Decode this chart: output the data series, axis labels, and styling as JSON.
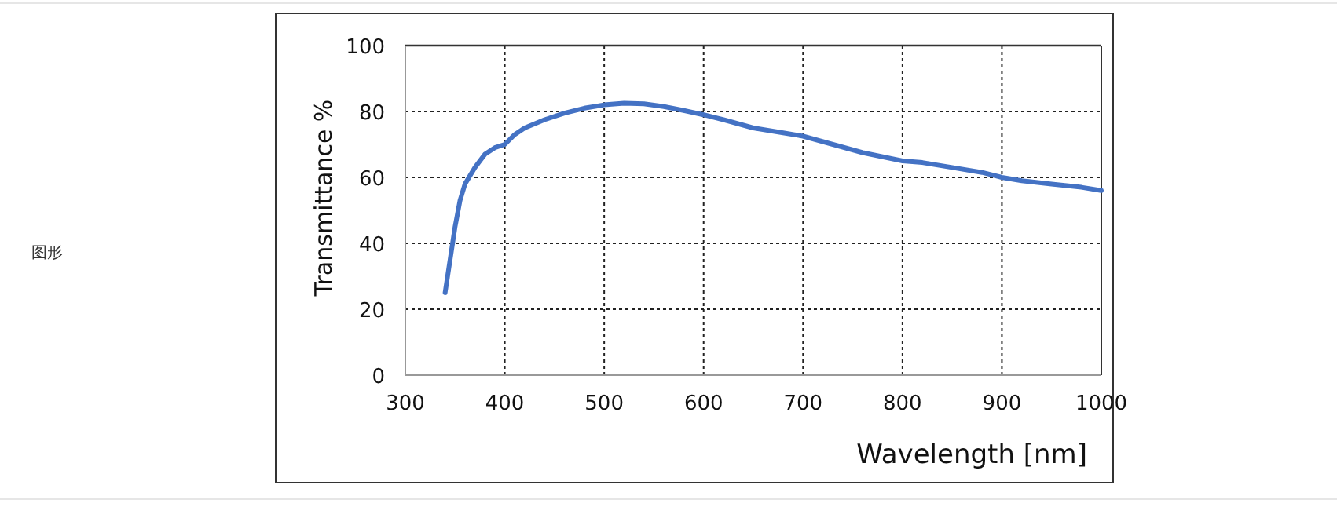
{
  "chart_data": {
    "type": "line",
    "xlabel": "Wavelength [nm]",
    "ylabel": "Transmittance  %",
    "annotations": [
      "图形"
    ],
    "xlim": [
      300,
      1000
    ],
    "ylim": [
      0,
      100
    ],
    "xticks": [
      300,
      400,
      500,
      600,
      700,
      800,
      900,
      1000
    ],
    "yticks": [
      0,
      20,
      40,
      60,
      80,
      100
    ],
    "grid": true,
    "marker": "none",
    "line_style": "solid",
    "series": [
      {
        "color": "#4472c4",
        "x": [
          340,
          345,
          350,
          355,
          360,
          370,
          380,
          390,
          400,
          410,
          420,
          440,
          460,
          480,
          500,
          520,
          540,
          560,
          580,
          600,
          620,
          650,
          680,
          700,
          730,
          760,
          800,
          820,
          850,
          880,
          900,
          920,
          950,
          980,
          1000
        ],
        "values": [
          25,
          35,
          45,
          53,
          58,
          63,
          67,
          69,
          70,
          73,
          75,
          77.5,
          79.5,
          81,
          82,
          82.5,
          82.3,
          81.5,
          80.3,
          79,
          77.5,
          75,
          73.5,
          72.5,
          70,
          67.5,
          65,
          64.5,
          63,
          61.5,
          60,
          59,
          58,
          57,
          56
        ]
      }
    ]
  }
}
